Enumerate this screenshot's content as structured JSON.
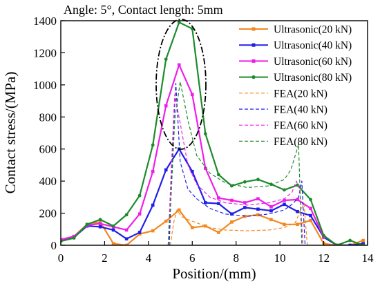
{
  "chart_data": {
    "type": "line",
    "title": "Angle: 5°, Contact length: 5mm",
    "xlabel": "Position/(mm)",
    "ylabel": "Contact stress/(MPa)",
    "xlim": [
      0,
      14
    ],
    "ylim": [
      0,
      1400
    ],
    "xticks": [
      0,
      2,
      4,
      6,
      8,
      10,
      12,
      14
    ],
    "yticks": [
      0,
      200,
      400,
      600,
      800,
      1000,
      1200,
      1400
    ],
    "grid": false,
    "legend_position": "top-right",
    "annotation": "dash-dot ellipse around the peak region",
    "series": [
      {
        "name": "Ultrasonic(20 kN)",
        "color": "#f5871f",
        "style": "solid",
        "marker": "square",
        "x": [
          0,
          0.6,
          1.2,
          1.8,
          2.4,
          3.0,
          3.6,
          4.2,
          4.8,
          5.4,
          6.0,
          6.6,
          7.2,
          7.8,
          8.4,
          9.0,
          9.6,
          10.2,
          10.8,
          11.4,
          12.0,
          12.6,
          13.2,
          13.8
        ],
        "y": [
          35,
          55,
          130,
          145,
          10,
          0,
          70,
          90,
          150,
          220,
          110,
          120,
          80,
          145,
          180,
          190,
          160,
          130,
          130,
          155,
          10,
          0,
          0,
          30
        ]
      },
      {
        "name": "Ultrasonic(40 kN)",
        "color": "#1f1fe8",
        "style": "solid",
        "marker": "square",
        "x": [
          0,
          0.6,
          1.2,
          1.8,
          2.4,
          3.0,
          3.6,
          4.2,
          4.8,
          5.4,
          6.0,
          6.6,
          7.2,
          7.8,
          8.4,
          9.0,
          9.6,
          10.2,
          10.8,
          11.4,
          12.0,
          12.6,
          13.2,
          13.8
        ],
        "y": [
          30,
          50,
          120,
          115,
          95,
          40,
          80,
          250,
          470,
          600,
          460,
          265,
          260,
          195,
          235,
          225,
          215,
          255,
          210,
          185,
          50,
          0,
          0,
          10
        ]
      },
      {
        "name": "Ultrasonic(60 kN)",
        "color": "#ee1ee8",
        "style": "solid",
        "marker": "square",
        "x": [
          0,
          0.6,
          1.2,
          1.8,
          2.4,
          3.0,
          3.6,
          4.2,
          4.8,
          5.4,
          6.0,
          6.6,
          7.2,
          7.8,
          8.4,
          9.0,
          9.6,
          10.2,
          10.8,
          11.4,
          12.0
        ],
        "y": [
          35,
          55,
          125,
          135,
          115,
          95,
          195,
          460,
          870,
          1125,
          940,
          480,
          295,
          280,
          265,
          290,
          240,
          280,
          285,
          230,
          50
        ]
      },
      {
        "name": "Ultrasonic(80 kN)",
        "color": "#1d8a2c",
        "style": "solid",
        "marker": "circle",
        "x": [
          0,
          0.6,
          1.2,
          1.8,
          2.4,
          3.0,
          3.6,
          4.2,
          4.8,
          5.4,
          6.0,
          6.6,
          7.2,
          7.8,
          8.4,
          9.0,
          9.6,
          10.2,
          10.8,
          11.4,
          12.0,
          12.6,
          13.2,
          13.8
        ],
        "y": [
          25,
          45,
          130,
          160,
          120,
          190,
          310,
          625,
          1160,
          1390,
          1350,
          695,
          440,
          370,
          395,
          410,
          380,
          345,
          375,
          285,
          60,
          0,
          30,
          0
        ]
      },
      {
        "name": "FEA(20 kN)",
        "color": "#f5871f",
        "style": "dashed",
        "marker": "none",
        "x": [
          5.0,
          5.15,
          5.3,
          5.5,
          5.8,
          6.2,
          6.8,
          7.5,
          8.5,
          9.5,
          10.2,
          10.7,
          10.95,
          11.1,
          11.25
        ],
        "y": [
          0,
          140,
          220,
          180,
          160,
          140,
          110,
          95,
          90,
          95,
          110,
          140,
          220,
          260,
          0
        ]
      },
      {
        "name": "FEA(40 kN)",
        "color": "#1f1fe8",
        "style": "dashed",
        "marker": "none",
        "x": [
          4.95,
          5.1,
          5.25,
          5.45,
          5.8,
          6.2,
          6.8,
          7.5,
          8.5,
          9.5,
          10.2,
          10.6,
          10.85,
          11.0,
          11.15
        ],
        "y": [
          0,
          600,
          1010,
          520,
          350,
          290,
          230,
          195,
          180,
          195,
          220,
          260,
          300,
          400,
          0
        ]
      },
      {
        "name": "FEA(60 kN)",
        "color": "#ee1ee8",
        "style": "dashed",
        "marker": "none",
        "x": [
          4.9,
          5.05,
          5.2,
          5.45,
          5.8,
          6.2,
          6.8,
          7.5,
          8.5,
          9.5,
          10.2,
          10.55,
          10.75,
          10.9,
          11.05
        ],
        "y": [
          0,
          500,
          940,
          760,
          500,
          380,
          300,
          265,
          250,
          265,
          290,
          330,
          400,
          350,
          0
        ]
      },
      {
        "name": "FEA(80 kN)",
        "color": "#1d8a2c",
        "style": "dashed",
        "marker": "none",
        "x": [
          4.9,
          5.05,
          5.2,
          5.45,
          5.8,
          6.2,
          6.8,
          7.5,
          8.5,
          9.5,
          10.2,
          10.5,
          10.7,
          10.85,
          11.0
        ],
        "y": [
          0,
          350,
          780,
          1020,
          780,
          560,
          450,
          390,
          360,
          370,
          410,
          470,
          560,
          630,
          0
        ]
      }
    ]
  }
}
